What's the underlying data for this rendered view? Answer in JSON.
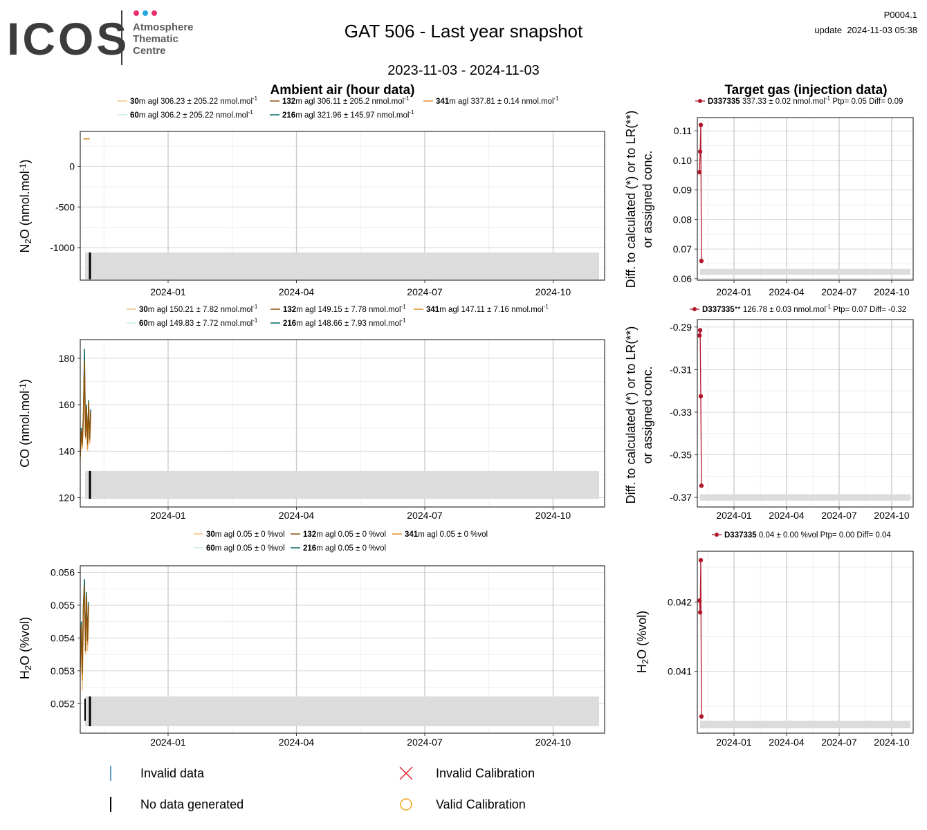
{
  "logo": {
    "brand": "ICOS",
    "line1": "Atmosphere",
    "line2": "Thematic",
    "line3": "Centre",
    "dot_colors": [
      "#e8306f",
      "#2aa6de",
      "#e8306f"
    ],
    "brand_color": "#3c3c3c",
    "sub_color": "#5a5a5a"
  },
  "header": {
    "title": "GAT 506 - Last year snapshot",
    "date_range": "2023-11-03 - 2024-11-03",
    "code": "P0004.1",
    "update_label": "update",
    "update_value": "2024-11-03 05:38"
  },
  "columns": {
    "left_title": "Ambient air (hour data)",
    "right_title": "Target gas (injection data)"
  },
  "colors": {
    "h30": "#f0c27c",
    "h132": "#8c510a",
    "h341": "#e08d2b",
    "h60": "#c7eae5",
    "h216": "#01665e",
    "target": "#b2182b",
    "invalid_data": "#2c7fb8",
    "invalid_cal": "#e41a1c",
    "valid_cal": "#f2a51a",
    "no_data": "#000000",
    "band": "#dcdcdc"
  },
  "chart_data": [
    {
      "type": "line",
      "panel": "ambient-n2o",
      "ylabel_main": "N",
      "ylabel_sub": "2",
      "ylabel_rest": "O (nmol.mol",
      "ylabel_sup": "-1",
      "ylabel_end": ")",
      "x_ticks": [
        "2024-01",
        "2024-04",
        "2024-07",
        "2024-10"
      ],
      "y_ticks": [
        0,
        -500,
        -1000
      ],
      "ylim": [
        -1400,
        430
      ],
      "legend": [
        {
          "key": "h30",
          "height": "30",
          "text": "m agl 306.23 ± 205.22 nmol.mol",
          "sup": "-1"
        },
        {
          "key": "h132",
          "height": "132",
          "text": "m agl 306.11 ± 205.2 nmol.mol",
          "sup": "-1"
        },
        {
          "key": "h341",
          "height": "341",
          "text": "m agl 337.81 ± 0.14 nmol.mol",
          "sup": "-1"
        },
        {
          "key": "h60",
          "height": "60",
          "text": "m agl 306.2 ± 205.22 nmol.mol",
          "sup": "-1"
        },
        {
          "key": "h216",
          "height": "216",
          "text": "m agl 321.96 ± 145.97 nmol.mol",
          "sup": "-1"
        }
      ],
      "series": [
        {
          "key": "h132",
          "points": [
            [
              0.006,
              337.6
            ],
            [
              0.012,
              338.0
            ],
            [
              0.018,
              337.8
            ]
          ]
        },
        {
          "key": "h341",
          "points": [
            [
              0.006,
              337.9
            ],
            [
              0.012,
              337.7
            ],
            [
              0.018,
              337.9
            ]
          ]
        }
      ],
      "band": [
        -1060,
        -1390
      ],
      "nodata": [
        -1060,
        -1390
      ]
    },
    {
      "type": "line",
      "panel": "ambient-co",
      "ylabel_main": "CO (nmol.mol",
      "ylabel_sub": "",
      "ylabel_rest": "",
      "ylabel_sup": "-1",
      "ylabel_end": ")",
      "x_ticks": [
        "2024-01",
        "2024-04",
        "2024-07",
        "2024-10"
      ],
      "y_ticks": [
        180,
        160,
        140,
        120
      ],
      "ylim": [
        116,
        188
      ],
      "legend": [
        {
          "key": "h30",
          "height": "30",
          "text": "m agl 150.21 ± 7.82 nmol.mol",
          "sup": "-1"
        },
        {
          "key": "h132",
          "height": "132",
          "text": "m agl 149.15 ± 7.78 nmol.mol",
          "sup": "-1"
        },
        {
          "key": "h341",
          "height": "341",
          "text": "m agl 147.11 ± 7.16 nmol.mol",
          "sup": "-1"
        },
        {
          "key": "h60",
          "height": "60",
          "text": "m agl 149.83 ± 7.72 nmol.mol",
          "sup": "-1"
        },
        {
          "key": "h216",
          "height": "216",
          "text": "m agl 148.66 ± 7.93 nmol.mol",
          "sup": "-1"
        }
      ],
      "series": [
        {
          "key": "h216",
          "points": [
            [
              0.0,
              140
            ],
            [
              0.002,
              150
            ],
            [
              0.004,
              144
            ],
            [
              0.006,
              156
            ],
            [
              0.008,
              184
            ],
            [
              0.01,
              148
            ],
            [
              0.012,
              160
            ],
            [
              0.014,
              142
            ],
            [
              0.016,
              162
            ],
            [
              0.018,
              146
            ],
            [
              0.02,
              158
            ]
          ]
        },
        {
          "key": "h30",
          "points": [
            [
              0.0,
              136
            ],
            [
              0.002,
              146
            ],
            [
              0.004,
              141
            ],
            [
              0.006,
              152
            ],
            [
              0.008,
              178
            ],
            [
              0.01,
              145
            ],
            [
              0.012,
              157
            ],
            [
              0.014,
              140
            ],
            [
              0.016,
              160
            ],
            [
              0.018,
              143
            ],
            [
              0.02,
              155
            ]
          ]
        },
        {
          "key": "h341",
          "points": [
            [
              0.0,
              137
            ],
            [
              0.002,
              148
            ],
            [
              0.004,
              142
            ],
            [
              0.006,
              154
            ],
            [
              0.008,
              176
            ],
            [
              0.01,
              147
            ],
            [
              0.012,
              158
            ],
            [
              0.014,
              141
            ],
            [
              0.016,
              161
            ],
            [
              0.018,
              144
            ],
            [
              0.02,
              156
            ]
          ]
        },
        {
          "key": "h132",
          "points": [
            [
              0.0,
              138
            ],
            [
              0.002,
              149
            ],
            [
              0.004,
              143
            ],
            [
              0.006,
              155
            ],
            [
              0.008,
              179
            ],
            [
              0.01,
              146
            ],
            [
              0.012,
              159
            ],
            [
              0.014,
              143
            ],
            [
              0.016,
              161
            ],
            [
              0.018,
              145
            ],
            [
              0.02,
              157
            ]
          ]
        }
      ],
      "band": [
        131.5,
        119.5
      ],
      "nodata": [
        131.5,
        119.5
      ]
    },
    {
      "type": "line",
      "panel": "ambient-h2o",
      "ylabel_main": "H",
      "ylabel_sub": "2",
      "ylabel_rest": "O (%vol)",
      "ylabel_sup": "",
      "ylabel_end": "",
      "x_ticks": [
        "2024-01",
        "2024-04",
        "2024-07",
        "2024-10"
      ],
      "y_ticks": [
        "0.056",
        "0.055",
        "0.054",
        "0.053",
        "0.052"
      ],
      "ylim": [
        0.0511,
        0.0562
      ],
      "legend": [
        {
          "key": "h30",
          "height": "30",
          "text": "m agl 0.05 ± 0 %vol",
          "sup": ""
        },
        {
          "key": "h132",
          "height": "132",
          "text": "m agl 0.05 ± 0 %vol",
          "sup": ""
        },
        {
          "key": "h341",
          "height": "341",
          "text": "m agl 0.05 ± 0 %vol",
          "sup": ""
        },
        {
          "key": "h60",
          "height": "60",
          "text": "m agl 0.05 ± 0 %vol",
          "sup": ""
        },
        {
          "key": "h216",
          "height": "216",
          "text": "m agl 0.05 ± 0 %vol",
          "sup": ""
        }
      ],
      "series": [
        {
          "key": "h216",
          "points": [
            [
              0.0,
              0.0532
            ],
            [
              0.002,
              0.0545
            ],
            [
              0.004,
              0.0531
            ],
            [
              0.006,
              0.055
            ],
            [
              0.008,
              0.0558
            ],
            [
              0.01,
              0.0538
            ],
            [
              0.012,
              0.0554
            ],
            [
              0.014,
              0.054
            ],
            [
              0.016,
              0.0551
            ]
          ]
        },
        {
          "key": "h30",
          "points": [
            [
              0.0,
              0.0528
            ],
            [
              0.002,
              0.054
            ],
            [
              0.004,
              0.0524
            ],
            [
              0.006,
              0.0546
            ],
            [
              0.008,
              0.0553
            ],
            [
              0.01,
              0.0535
            ],
            [
              0.012,
              0.055
            ],
            [
              0.014,
              0.0536
            ],
            [
              0.016,
              0.0548
            ]
          ]
        },
        {
          "key": "h341",
          "points": [
            [
              0.0,
              0.053
            ],
            [
              0.002,
              0.0543
            ],
            [
              0.004,
              0.0527
            ],
            [
              0.006,
              0.0548
            ],
            [
              0.008,
              0.0555
            ],
            [
              0.01,
              0.0537
            ],
            [
              0.012,
              0.0552
            ],
            [
              0.014,
              0.0538
            ],
            [
              0.016,
              0.0549
            ]
          ]
        },
        {
          "key": "h132",
          "points": [
            [
              0.0,
              0.0531
            ],
            [
              0.002,
              0.0544
            ],
            [
              0.004,
              0.0529
            ],
            [
              0.006,
              0.0549
            ],
            [
              0.008,
              0.0556
            ],
            [
              0.01,
              0.0536
            ],
            [
              0.012,
              0.0553
            ],
            [
              0.014,
              0.0539
            ],
            [
              0.016,
              0.055
            ]
          ]
        }
      ],
      "band": [
        0.05222,
        0.05131
      ],
      "nodata": [
        0.05222,
        0.05131
      ],
      "nodata_extra": [
        0.05215,
        0.05148
      ]
    },
    {
      "type": "line",
      "panel": "target-n2o",
      "ylabel_l1": "Diff. to calculated (*) or to LR(**)",
      "ylabel_l2": "or assigned conc.",
      "x_ticks": [
        "2024-01",
        "2024-04",
        "2024-07",
        "2024-10"
      ],
      "y_ticks": [
        "0.11",
        "0.10",
        "0.09",
        "0.08",
        "0.07",
        "0.06"
      ],
      "ylim": [
        0.0595,
        0.1145
      ],
      "legend": {
        "cylinder": "D337335",
        "suffix": "",
        "text": " 337.33 ± 0.02 nmol.mol",
        "sup": "-1",
        "tail": " Ptp= 0.05 Diff= 0.09"
      },
      "points": [
        [
          0.01,
          0.096
        ],
        [
          0.013,
          0.103
        ],
        [
          0.016,
          0.112
        ],
        [
          0.019,
          0.066
        ]
      ],
      "band": [
        0.0633,
        0.0613
      ]
    },
    {
      "type": "line",
      "panel": "target-co",
      "ylabel_l1": "Diff. to calculated (*) or to LR(**)",
      "ylabel_l2": "or assigned conc.",
      "x_ticks": [
        "2024-01",
        "2024-04",
        "2024-07",
        "2024-10"
      ],
      "y_ticks": [
        "-0.29",
        "-0.31",
        "-0.33",
        "-0.35",
        "-0.37"
      ],
      "ylim": [
        -0.3745,
        -0.2865
      ],
      "legend": {
        "cylinder": "D337335",
        "suffix": "**",
        "text": " 126.78 ± 0.03 nmol.mol",
        "sup": "-1",
        "tail": " Ptp= 0.07 Diff= -0.32"
      },
      "points": [
        [
          0.01,
          -0.294
        ],
        [
          0.013,
          -0.2915
        ],
        [
          0.016,
          -0.3225
        ],
        [
          0.019,
          -0.3645
        ]
      ],
      "band": [
        -0.3685,
        -0.3715
      ]
    },
    {
      "type": "line",
      "panel": "target-h2o",
      "ylabel_main": "H",
      "ylabel_sub": "2",
      "ylabel_rest": "O (%vol)",
      "x_ticks": [
        "2024-01",
        "2024-04",
        "2024-07",
        "2024-10"
      ],
      "y_ticks": [
        "0.042",
        "0.041"
      ],
      "ylim": [
        0.04011,
        0.04273
      ],
      "legend": {
        "cylinder": "D337335",
        "suffix": "",
        "text": " 0.04 ± 0.00 %vol Ptp= 0.00 Diff= 0.04",
        "sup": "",
        "tail": ""
      },
      "points": [
        [
          0.01,
          0.04202
        ],
        [
          0.013,
          0.04185
        ],
        [
          0.016,
          0.0426
        ],
        [
          0.019,
          0.04035
        ]
      ],
      "band": [
        0.04029,
        0.04018
      ]
    }
  ],
  "bottom_legend": {
    "invalid_data": "Invalid data",
    "no_data": "No data generated",
    "invalid_cal": "Invalid Calibration",
    "valid_cal": "Valid Calibration"
  }
}
